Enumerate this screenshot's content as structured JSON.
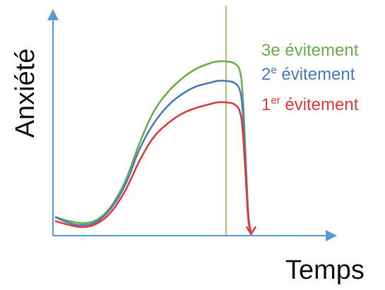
{
  "chart_data": {
    "type": "line",
    "title": "",
    "xlabel": "Temps",
    "ylabel": "Anxiété",
    "grid": false,
    "legend_position": "right",
    "colors": {
      "axis": "#5B9BD5",
      "marker_line": "#8DB43A"
    },
    "x_domain": [
      0,
      100
    ],
    "y_domain": [
      0,
      100
    ],
    "marker_x": 61,
    "series": [
      {
        "name": "3e évitement",
        "label_main": "3e évitement",
        "label_sup": "",
        "label_rest": "",
        "color": "#6AB04C",
        "x": [
          0,
          5,
          10,
          15,
          20,
          25,
          30,
          35,
          40,
          45,
          50,
          55,
          58,
          61,
          64,
          66,
          67,
          68,
          69,
          70
        ],
        "y": [
          8,
          6,
          5,
          7,
          14,
          27,
          46,
          62,
          72,
          79,
          84,
          87,
          88,
          88,
          87,
          83,
          70,
          40,
          10,
          0
        ]
      },
      {
        "name": "2e évitement",
        "label_main": "2",
        "label_sup": "e",
        "label_rest": " évitement",
        "color": "#4A7EBB",
        "x": [
          0,
          5,
          10,
          15,
          20,
          25,
          30,
          35,
          40,
          45,
          50,
          55,
          58,
          61,
          64,
          66,
          67,
          68,
          69,
          70
        ],
        "y": [
          8,
          5,
          4,
          6,
          13,
          25,
          43,
          56,
          65,
          71,
          75,
          77,
          78,
          78,
          77,
          73,
          62,
          35,
          8,
          0
        ]
      },
      {
        "name": "1er évitement",
        "label_main": "1",
        "label_sup": "er",
        "label_rest": " évitement",
        "color": "#E23B3B",
        "x": [
          0,
          5,
          10,
          15,
          20,
          25,
          30,
          35,
          40,
          45,
          50,
          55,
          58,
          61,
          64,
          66,
          67,
          68,
          69,
          70
        ],
        "y": [
          6,
          4,
          3,
          5,
          11,
          22,
          37,
          49,
          56,
          61,
          64,
          66,
          67,
          67,
          66,
          62,
          52,
          30,
          7,
          0
        ]
      }
    ]
  }
}
